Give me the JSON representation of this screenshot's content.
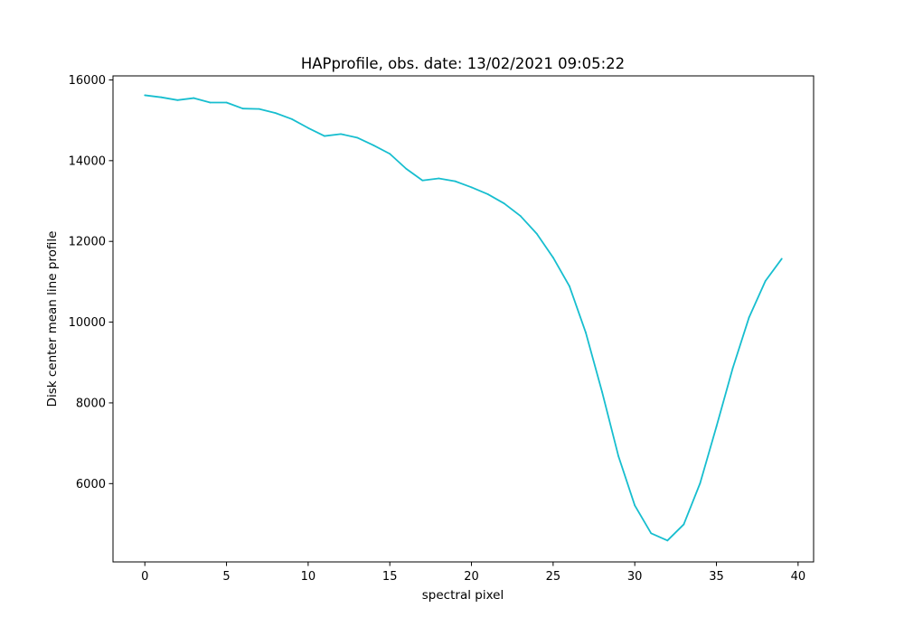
{
  "chart_data": {
    "type": "line",
    "title": "HAPprofile, obs. date: 13/02/2021 09:05:22",
    "xlabel": "spectral pixel",
    "ylabel": "Disk center mean line profile",
    "xlim": [
      -1.95,
      40.95
    ],
    "ylim": [
      4060,
      16100
    ],
    "x_ticks": [
      0,
      5,
      10,
      15,
      20,
      25,
      30,
      35,
      40
    ],
    "x_tick_labels": [
      "0",
      "5",
      "10",
      "15",
      "20",
      "25",
      "30",
      "35",
      "40"
    ],
    "y_ticks": [
      6000,
      8000,
      10000,
      12000,
      14000,
      16000
    ],
    "y_tick_labels": [
      "6000",
      "8000",
      "10000",
      "12000",
      "14000",
      "16000"
    ],
    "grid": false,
    "line_color": "#17becf",
    "series": [
      {
        "x": [
          0,
          1,
          2,
          3,
          4,
          5,
          6,
          7,
          8,
          9,
          10,
          11,
          12,
          13,
          14,
          15,
          16,
          17,
          18,
          19,
          20,
          21,
          22,
          23,
          24,
          25,
          26,
          27,
          28,
          29,
          30,
          31,
          32,
          33,
          34,
          35,
          36,
          37,
          38,
          39
        ],
        "values": [
          15620,
          15570,
          15500,
          15550,
          15440,
          15440,
          15290,
          15280,
          15180,
          15030,
          14810,
          14610,
          14660,
          14570,
          14380,
          14170,
          13800,
          13510,
          13560,
          13490,
          13340,
          13170,
          12940,
          12630,
          12190,
          11600,
          10890,
          9740,
          8270,
          6680,
          5460,
          4770,
          4590,
          4990,
          6010,
          7410,
          8860,
          10120,
          11020,
          11570
        ]
      }
    ]
  }
}
